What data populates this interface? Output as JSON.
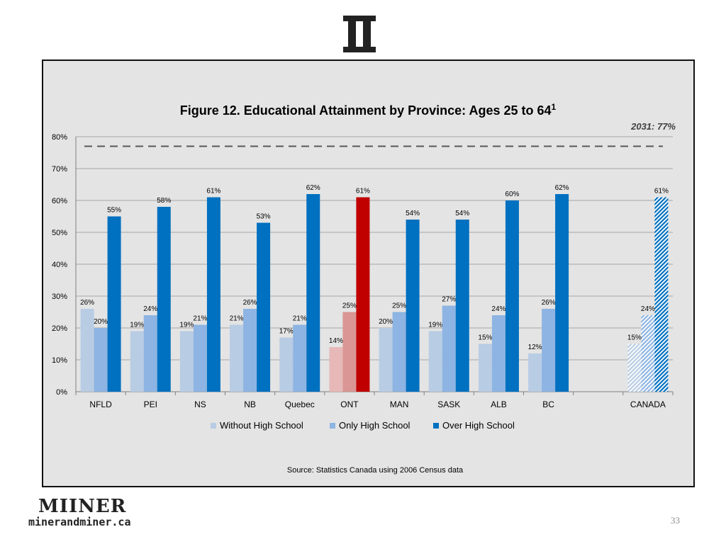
{
  "brand": {
    "logo_icon": "double-bar-roman-two-icon",
    "name": "MIINER",
    "url": "minerandminer.ca"
  },
  "page_number": "33",
  "chart_data": {
    "type": "bar",
    "title": "Figure 12. Educational Attainment by Province: Ages 25 to 64",
    "title_superscript": "1",
    "target_label": "2031: 77%",
    "target_value": 77,
    "source": "Source: Statistics Canada using 2006 Census data",
    "xlabel": "",
    "ylabel": "",
    "ylim": [
      0,
      80
    ],
    "yticks": [
      0,
      10,
      20,
      30,
      40,
      50,
      60,
      70,
      80
    ],
    "ytick_labels": [
      "0%",
      "10%",
      "20%",
      "30%",
      "40%",
      "50%",
      "60%",
      "70%",
      "80%"
    ],
    "legend_position": "bottom",
    "categories": [
      "NFLD",
      "PEI",
      "NS",
      "NB",
      "Quebec",
      "ONT",
      "MAN",
      "SASK",
      "ALB",
      "BC",
      "",
      "CANADA"
    ],
    "series": [
      {
        "name": "Without High School",
        "color": "#b8cce4",
        "values": [
          26,
          19,
          19,
          21,
          17,
          14,
          20,
          19,
          15,
          12,
          null,
          15
        ],
        "labels": [
          "26%",
          "19%",
          "19%",
          "21%",
          "17%",
          "14%",
          "20%",
          "19%",
          "15%",
          "12%",
          "",
          "15%"
        ]
      },
      {
        "name": "Only High School",
        "color": "#8db4e2",
        "values": [
          20,
          24,
          21,
          26,
          21,
          25,
          25,
          27,
          24,
          26,
          null,
          24
        ],
        "labels": [
          "20%",
          "24%",
          "21%",
          "26%",
          "21%",
          "25%",
          "25%",
          "27%",
          "24%",
          "26%",
          "",
          "24%"
        ]
      },
      {
        "name": "Over High School",
        "color": "#0070c0",
        "values": [
          55,
          58,
          61,
          53,
          62,
          61,
          54,
          54,
          60,
          62,
          null,
          61
        ],
        "labels": [
          "55%",
          "58%",
          "61%",
          "53%",
          "62%",
          "61%",
          "54%",
          "54%",
          "60%",
          "62%",
          "",
          "61%"
        ]
      }
    ],
    "highlight_category": "ONT",
    "highlight_colors": [
      "#e6b9b8",
      "#d99694",
      "#c00000"
    ],
    "hatched_category": "CANADA"
  }
}
